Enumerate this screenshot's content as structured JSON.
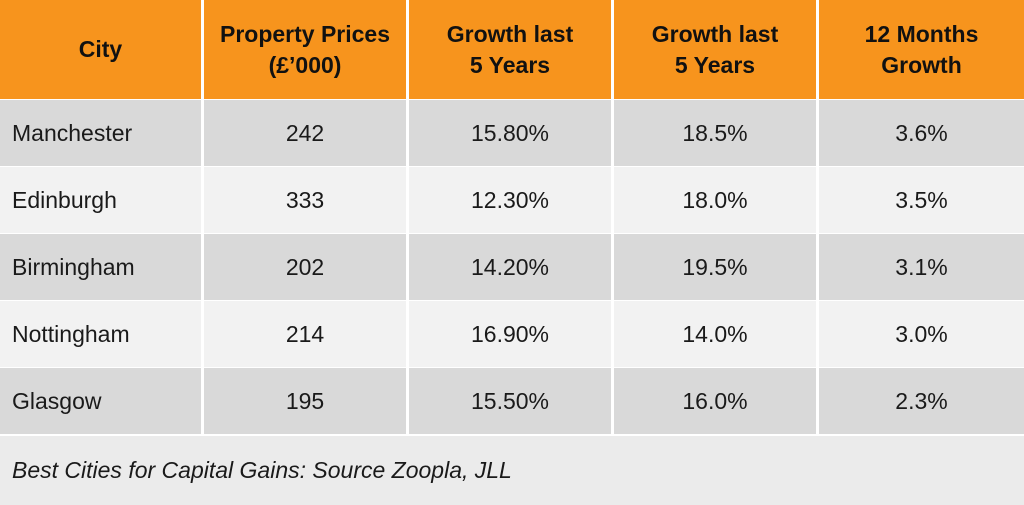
{
  "table": {
    "headers": [
      [
        "City"
      ],
      [
        "Property Prices",
        "(£’000)"
      ],
      [
        "Growth last",
        "5 Years"
      ],
      [
        "Growth last",
        "5 Years"
      ],
      [
        "12 Months",
        "Growth"
      ]
    ],
    "rows": [
      [
        "Manchester",
        "242",
        "15.80%",
        "18.5%",
        "3.6%"
      ],
      [
        "Edinburgh",
        "333",
        "12.30%",
        "18.0%",
        "3.5%"
      ],
      [
        "Birmingham",
        "202",
        "14.20%",
        "19.5%",
        "3.1%"
      ],
      [
        "Nottingham",
        "214",
        "16.90%",
        "14.0%",
        "3.0%"
      ],
      [
        "Glasgow",
        "195",
        "15.50%",
        "16.0%",
        "2.3%"
      ]
    ]
  },
  "footer": {
    "caption": "Best Cities for Capital Gains: Source Zoopla, JLL"
  },
  "colors": {
    "header_bg": "#f7941d",
    "row_dark": "#d9d9d9",
    "row_light": "#f2f2f2",
    "footer_bg": "#ebebeb"
  }
}
